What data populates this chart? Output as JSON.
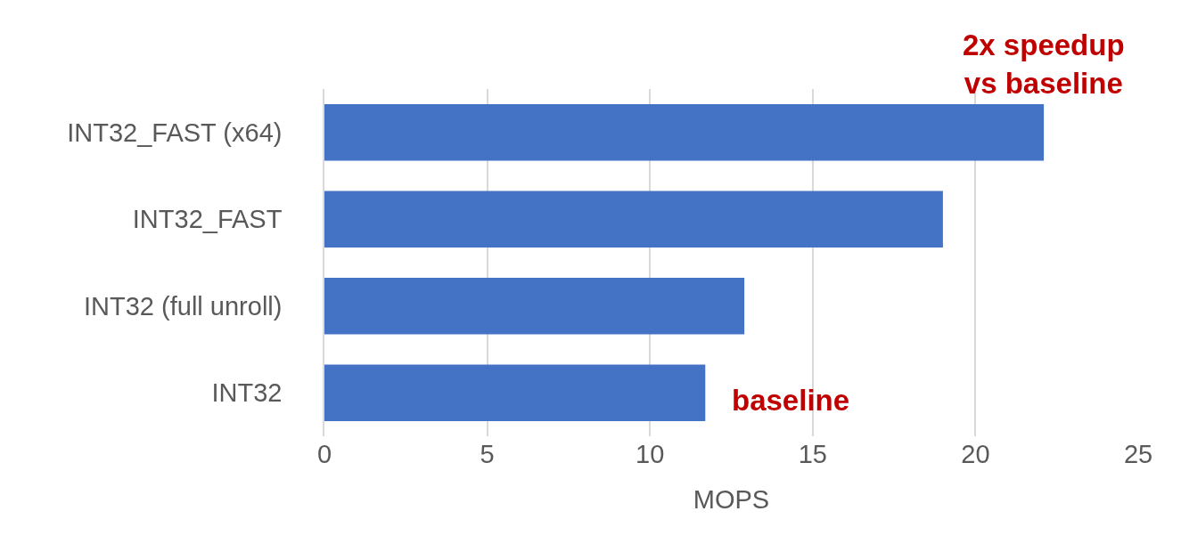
{
  "chart_data": {
    "type": "bar",
    "orientation": "horizontal",
    "categories": [
      "INT32_FAST (x64)",
      "INT32_FAST",
      "INT32 (full unroll)",
      "INT32"
    ],
    "values": [
      22.1,
      19.0,
      12.9,
      11.7
    ],
    "color": "#4472c4",
    "xlim": [
      0,
      25
    ],
    "xticks": [
      0,
      5,
      10,
      15,
      20,
      25
    ],
    "grid": "x",
    "xlabel": "MOPS",
    "annotations": [
      {
        "text": "2x speedup\nvs baseline",
        "x": 22.1,
        "y": "INT32_FAST (x64)"
      },
      {
        "text": "baseline",
        "x": 11.7,
        "y": "INT32"
      }
    ]
  }
}
